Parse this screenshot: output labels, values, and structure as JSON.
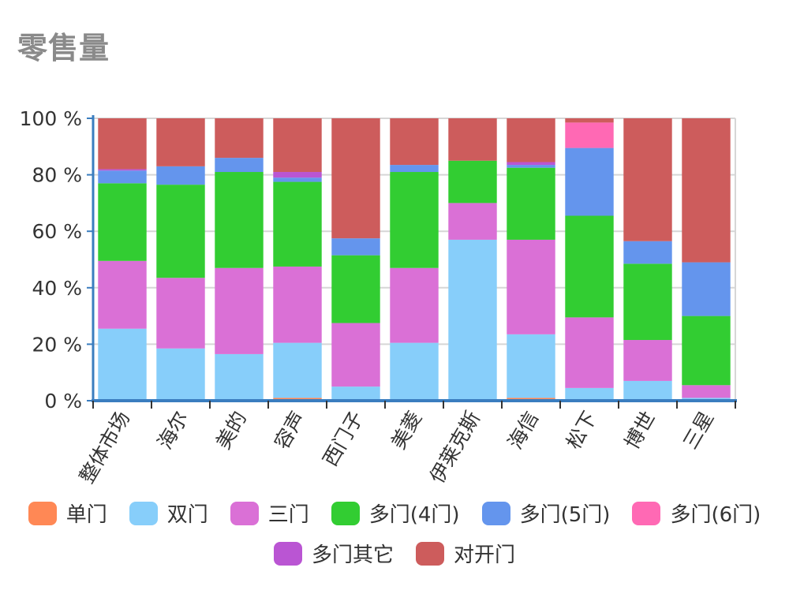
{
  "title": "零售量",
  "chart_data": {
    "type": "bar",
    "stacked": true,
    "categories": [
      "整体市场",
      "海尔",
      "美的",
      "容声",
      "西门子",
      "美菱",
      "伊莱克斯",
      "海信",
      "松下",
      "博世",
      "三星"
    ],
    "yticks": [
      "0 %",
      "20 %",
      "40 %",
      "60 %",
      "80 %",
      "100 %"
    ],
    "ylim": [
      0,
      100
    ],
    "grid": true,
    "legend_position": "bottom",
    "series": [
      {
        "name": "单门",
        "color": "#FF8855",
        "values": [
          0,
          0.5,
          0.5,
          1,
          0,
          0,
          0,
          1,
          0,
          0,
          0
        ]
      },
      {
        "name": "双门",
        "color": "#87CEFA",
        "values": [
          25.5,
          18,
          16,
          19.5,
          5,
          20.5,
          57,
          22.5,
          4.5,
          7,
          1
        ]
      },
      {
        "name": "三门",
        "color": "#DA70D6",
        "values": [
          24,
          25,
          30.5,
          27,
          22.5,
          26.5,
          13,
          33.5,
          25,
          14.5,
          4.5
        ]
      },
      {
        "name": "多门(4门)",
        "color": "#32CD32",
        "values": [
          27.5,
          33,
          34,
          30,
          24,
          34,
          15,
          25.5,
          36,
          27,
          24.5
        ]
      },
      {
        "name": "多门(5门)",
        "color": "#6495ED",
        "values": [
          4.5,
          6.5,
          5,
          1.5,
          6,
          2.5,
          0,
          1,
          24,
          8,
          19
        ]
      },
      {
        "name": "多门(6门)",
        "color": "#FF69B4",
        "values": [
          0,
          0,
          0,
          0,
          0,
          0,
          0,
          0,
          9,
          0,
          0
        ]
      },
      {
        "name": "多门其它",
        "color": "#BA55D3",
        "values": [
          0.5,
          0,
          0,
          2,
          0,
          0,
          0,
          1,
          0,
          0,
          0
        ]
      },
      {
        "name": "对开门",
        "color": "#CD5C5C",
        "values": [
          18,
          17,
          14,
          19,
          42.5,
          16.5,
          15,
          15.5,
          1.5,
          43.5,
          51
        ]
      }
    ]
  }
}
